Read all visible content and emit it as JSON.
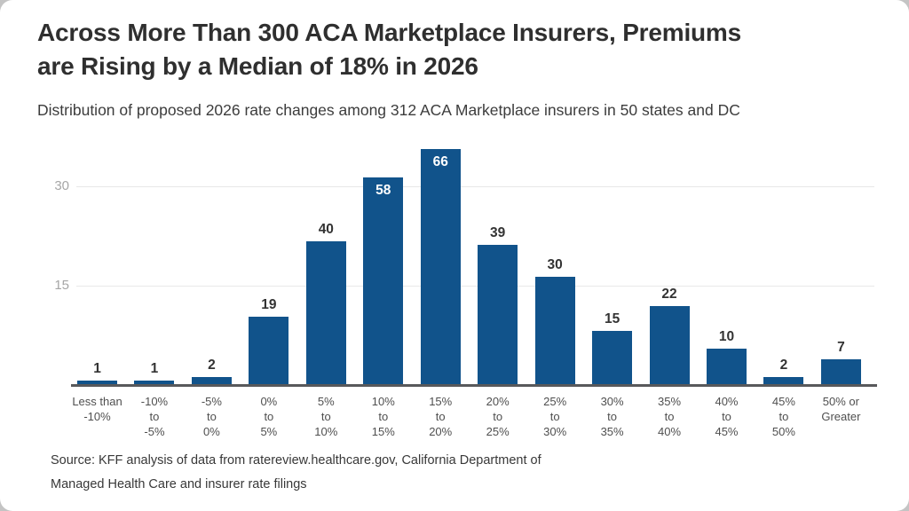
{
  "header": {
    "title_lines": [
      "Across More Than 300 ACA Marketplace Insurers, Premiums",
      "are Rising by a Median of 18% in 2026"
    ],
    "subtitle": "Distribution of proposed 2026 rate changes among 312 ACA Marketplace insurers in 50 states and DC"
  },
  "chart_data": {
    "type": "bar",
    "title": "Across More Than 300 ACA Marketplace Insurers, Premiums are Rising by a Median of 18% in 2026",
    "subtitle": "Distribution of proposed 2026 rate changes among 312 ACA Marketplace insurers in 50 states and DC",
    "categories": [
      "Less than -10%",
      "-10% to -5%",
      "-5% to 0%",
      "0% to 5%",
      "5% to 10%",
      "10% to 15%",
      "15% to 20%",
      "20% to 25%",
      "25% to 30%",
      "30% to 35%",
      "35% to 40%",
      "40% to 45%",
      "45% to 50%",
      "50% or Greater"
    ],
    "category_lines": [
      [
        "Less than",
        "-10%"
      ],
      [
        "-10%",
        "to",
        "-5%"
      ],
      [
        "-5%",
        "to",
        "0%"
      ],
      [
        "0%",
        "to",
        "5%"
      ],
      [
        "5%",
        "to",
        "10%"
      ],
      [
        "10%",
        "to",
        "15%"
      ],
      [
        "15%",
        "to",
        "20%"
      ],
      [
        "20%",
        "to",
        "25%"
      ],
      [
        "25%",
        "to",
        "30%"
      ],
      [
        "30%",
        "to",
        "35%"
      ],
      [
        "35%",
        "to",
        "40%"
      ],
      [
        "40%",
        "to",
        "45%"
      ],
      [
        "45%",
        "to",
        "50%"
      ],
      [
        "50% or",
        "Greater"
      ]
    ],
    "values": [
      1,
      1,
      2,
      19,
      40,
      58,
      66,
      39,
      30,
      15,
      22,
      10,
      2,
      7
    ],
    "value_labels_inside": [
      false,
      false,
      false,
      false,
      false,
      true,
      true,
      false,
      false,
      false,
      false,
      false,
      false,
      false
    ],
    "xlabel": "",
    "ylabel": "",
    "legend": "none",
    "grid": "horizontal",
    "y_axis": {
      "ticks": [
        15,
        30
      ]
    },
    "colors": {
      "bar": "#11538b",
      "value_label": "#333333",
      "value_label_inside": "#ffffff",
      "axis_line": "#58595b",
      "gridline": "#e8e8e8",
      "y_tick_label": "#a6a6a6",
      "x_tick_label": "#4f4f4f"
    }
  },
  "footer": {
    "source_lines": [
      "Source: KFF analysis of data from ratereview.healthcare.gov, California Department of",
      "Managed Health Care and insurer rate filings"
    ]
  }
}
